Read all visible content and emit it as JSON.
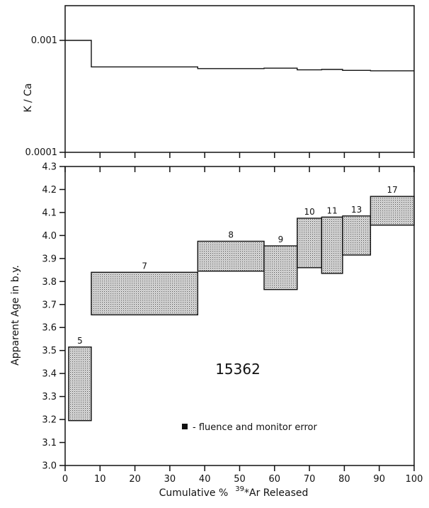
{
  "chart_data": [
    {
      "type": "line",
      "ylabel": "K / Ca",
      "yscale": "log",
      "ylim": [
        0.0001,
        0.0015
      ],
      "xlim": [
        0,
        100
      ],
      "y_tick_labels": [
        "0.001",
        "0.0001"
      ],
      "y_tick_values": [
        0.001,
        0.0001
      ],
      "series": [
        {
          "x": [
            0,
            7.5,
            7.5,
            38,
            38,
            57,
            57,
            66.5,
            66.5,
            73.5,
            73.5,
            79.5,
            79.5,
            87.5,
            87.5,
            100
          ],
          "y": [
            0.001,
            0.001,
            0.00058,
            0.00058,
            0.00056,
            0.00056,
            0.000565,
            0.000565,
            0.000545,
            0.000545,
            0.00055,
            0.00055,
            0.00054,
            0.00054,
            0.000535,
            0.000535
          ]
        }
      ]
    },
    {
      "type": "bar",
      "xlabel": "Cumulative %",
      "xlabel_sup": "39",
      "xlabel_tail": "*Ar Released",
      "ylabel": "Apparent  Age  in  b.y.",
      "xlim": [
        0,
        100
      ],
      "ylim": [
        3.0,
        4.3
      ],
      "x_ticks": [
        "0",
        "10",
        "20",
        "30",
        "40",
        "50",
        "60",
        "70",
        "80",
        "90",
        "100"
      ],
      "y_ticks": [
        "3.0",
        "3.1",
        "3.2",
        "3.3",
        "3.4",
        "3.5",
        "3.6",
        "3.7",
        "3.8",
        "3.9",
        "4.0",
        "4.1",
        "4.2",
        "4.3"
      ],
      "steps": [
        {
          "label": "5",
          "x0": 1,
          "x1": 7.5,
          "ymin": 3.195,
          "ymax": 3.515
        },
        {
          "label": "7",
          "x0": 7.5,
          "x1": 38,
          "ymin": 3.655,
          "ymax": 3.84
        },
        {
          "label": "8",
          "x0": 38,
          "x1": 57,
          "ymin": 3.845,
          "ymax": 3.975
        },
        {
          "label": "9",
          "x0": 57,
          "x1": 66.5,
          "ymin": 3.765,
          "ymax": 3.955
        },
        {
          "label": "10",
          "x0": 66.5,
          "x1": 73.5,
          "ymin": 3.86,
          "ymax": 4.075
        },
        {
          "label": "11",
          "x0": 73.5,
          "x1": 79.5,
          "ymin": 3.835,
          "ymax": 4.08
        },
        {
          "label": "13",
          "x0": 79.5,
          "x1": 87.5,
          "ymin": 3.915,
          "ymax": 4.085
        },
        {
          "label": "17",
          "x0": 87.5,
          "x1": 100,
          "ymin": 4.045,
          "ymax": 4.17
        }
      ],
      "annotations": {
        "sample": "15362",
        "legend_text": "- fluence and monitor error"
      }
    }
  ]
}
